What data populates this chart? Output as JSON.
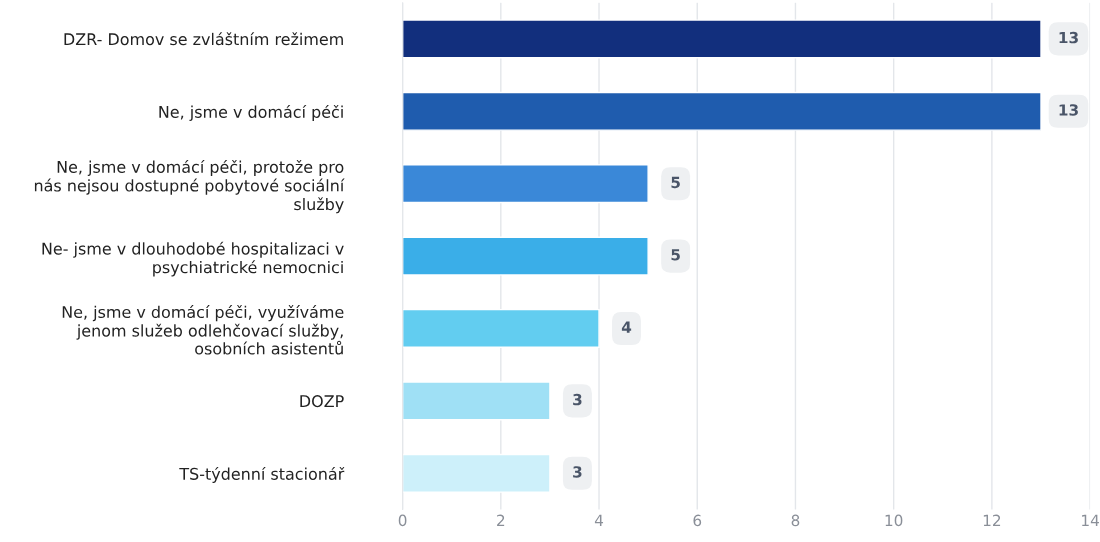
{
  "chart_data": {
    "type": "bar",
    "orientation": "horizontal",
    "categories": [
      "DZR- Domov se zvláštním režimem",
      "Ne, jsme v domácí péči",
      "Ne, jsme v domácí péči, protože pro\nnás nejsou dostupné pobytové sociální\nslužby",
      "Ne- jsme v dlouhodobé hospitalizaci v\npsychiatrické nemocnici",
      "Ne, jsme v domácí péči, využíváme\njenom služeb odlehčovací služby,\nosobních asistentů",
      "DOZP",
      "TS-týdenní stacionář"
    ],
    "values": [
      13,
      13,
      5,
      5,
      4,
      3,
      3
    ],
    "colors": [
      "#122f7d",
      "#1f5cae",
      "#3a88d8",
      "#3aaee8",
      "#62cdf0",
      "#9fe0f5",
      "#cdf0fa"
    ],
    "xlim": [
      0,
      14
    ],
    "xticks": [
      0,
      2,
      4,
      6,
      8,
      10,
      12,
      14
    ],
    "grid": "x",
    "data_labels": true
  }
}
